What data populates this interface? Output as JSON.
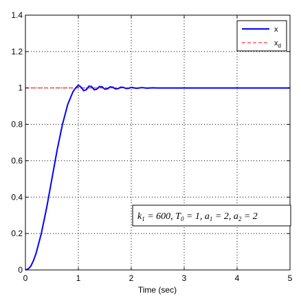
{
  "chart_data": {
    "type": "line",
    "title": "",
    "xlabel": "Time (sec)",
    "ylabel": "",
    "xlim": [
      0,
      5
    ],
    "ylim": [
      0,
      1.4
    ],
    "grid": true,
    "xticks": [
      0,
      1,
      2,
      3,
      4,
      5
    ],
    "xtick_labels": [
      "0",
      "1",
      "2",
      "3",
      "4",
      "5"
    ],
    "yticks": [
      0,
      0.2,
      0.4,
      0.6,
      0.8,
      1.0,
      1.2,
      1.4
    ],
    "ytick_labels": [
      "0",
      "0.2",
      "0.4",
      "0.6",
      "0.8",
      "1",
      "1.2",
      "1.4"
    ],
    "legend": {
      "position": "top-right",
      "entries": [
        "x",
        "x_d"
      ]
    },
    "series": [
      {
        "name": "x",
        "color": "#0000ff",
        "style": "solid",
        "x": [
          0,
          0.05,
          0.1,
          0.15,
          0.2,
          0.3,
          0.4,
          0.5,
          0.6,
          0.7,
          0.8,
          0.9,
          0.95,
          1.0,
          1.05,
          1.1,
          1.15,
          1.2,
          1.25,
          1.3,
          1.35,
          1.4,
          1.45,
          1.5,
          1.55,
          1.6,
          1.65,
          1.7,
          1.75,
          1.8,
          1.85,
          1.9,
          1.95,
          2.0,
          2.1,
          2.2,
          2.3,
          2.4,
          2.5,
          2.6,
          2.7,
          2.8,
          2.9,
          3.0,
          3.5,
          4.0,
          4.5,
          5.0
        ],
        "y": [
          0,
          0.005,
          0.02,
          0.05,
          0.09,
          0.2,
          0.34,
          0.5,
          0.66,
          0.8,
          0.91,
          0.98,
          1.0,
          1.015,
          1.005,
          0.985,
          0.99,
          1.01,
          1.008,
          0.99,
          0.993,
          1.008,
          1.006,
          0.993,
          0.995,
          1.006,
          1.004,
          0.995,
          0.996,
          1.004,
          1.003,
          0.997,
          0.998,
          1.003,
          0.998,
          1.002,
          0.999,
          1.001,
          1.0,
          1.0,
          1.0,
          1.0,
          1.0,
          1.0,
          1.0,
          1.0,
          1.0,
          1.0
        ]
      },
      {
        "name": "x_d",
        "color": "#ff0000",
        "style": "dashed",
        "x": [
          0,
          5
        ],
        "y": [
          1,
          1
        ]
      }
    ],
    "annotation": "k_1 = 600, T_0 = 1, a_1 = 2, a_2 = 2"
  }
}
